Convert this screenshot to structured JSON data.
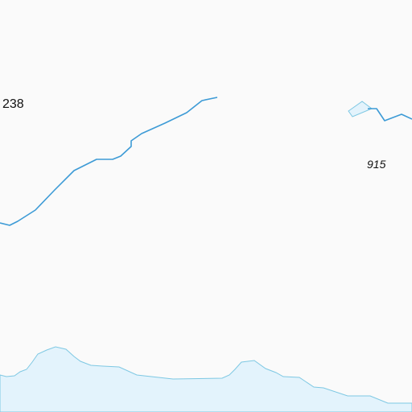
{
  "map": {
    "background_color": "#fafafa",
    "water_color": "#e3f3fc",
    "water_stroke_color": "#7ec8e3",
    "river_color": "#3d9bd6",
    "labels": {
      "route_number": "238",
      "elevation": "915"
    }
  }
}
